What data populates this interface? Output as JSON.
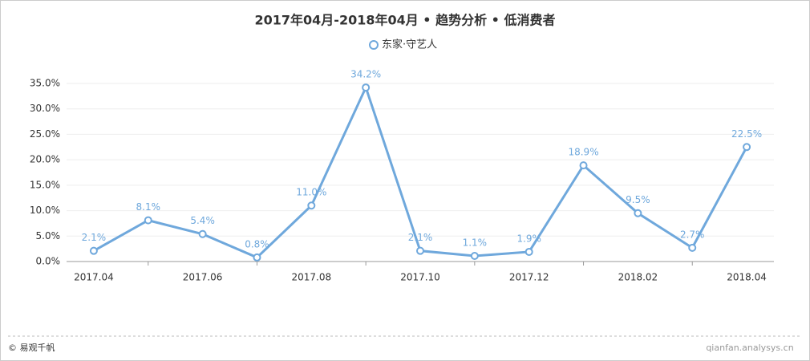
{
  "chart_data": {
    "type": "line",
    "title": "2017年04月-2018年04月 • 趋势分析 • 低消费者",
    "categories": [
      "2017.04",
      null,
      "2017.06",
      null,
      "2017.08",
      null,
      "2017.10",
      null,
      "2017.12",
      null,
      "2018.02",
      null,
      "2018.04"
    ],
    "series": [
      {
        "name": "东家·守艺人",
        "color": "#6fa8dc",
        "values": [
          2.1,
          8.1,
          5.4,
          0.8,
          11.0,
          34.2,
          2.1,
          1.1,
          1.9,
          18.9,
          9.5,
          2.7,
          22.5
        ],
        "value_labels": [
          "2.1%",
          "8.1%",
          "5.4%",
          "0.8%",
          "11.0%",
          "34.2%",
          "2.1%",
          "1.1%",
          "1.9%",
          "18.9%",
          "9.5%",
          "2.7%",
          "22.5%"
        ]
      }
    ],
    "ylim": [
      0,
      35
    ],
    "yticks": [
      {
        "value": 0,
        "label": "0.0%"
      },
      {
        "value": 5,
        "label": "5.0%"
      },
      {
        "value": 10,
        "label": "10.0%"
      },
      {
        "value": 15,
        "label": "15.0%"
      },
      {
        "value": 20,
        "label": "20.0%"
      },
      {
        "value": 25,
        "label": "25.0%"
      },
      {
        "value": 30,
        "label": "30.0%"
      },
      {
        "value": 35,
        "label": "35.0%"
      }
    ],
    "grid": true
  },
  "footer": {
    "copyright": "© 易观千帆",
    "watermark": "qianfan.analysys.cn"
  }
}
